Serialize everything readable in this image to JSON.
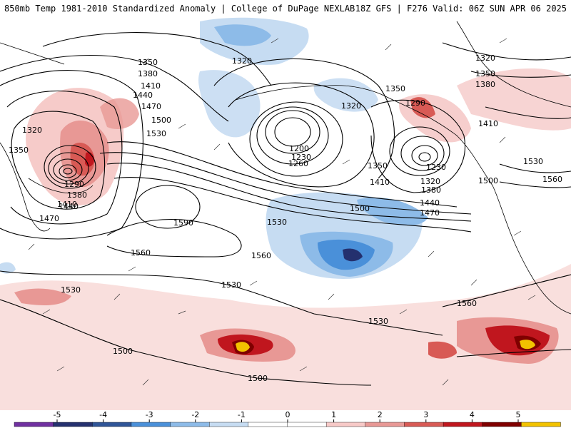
{
  "header": {
    "title_left": "850mb Temp 1981-2010 Standardized Anomaly | College of DuPage NEXLAB",
    "title_right": "18Z GFS | F276 Valid: 06Z SUN APR 06 2025"
  },
  "map": {
    "contour_labels": [
      "1350",
      "1380",
      "1410",
      "1440",
      "1470",
      "1500",
      "1530",
      "1320",
      "1350",
      "1290",
      "1380",
      "1410",
      "1440",
      "1470",
      "1590",
      "1560",
      "1530",
      "1500",
      "1500",
      "1320",
      "1320",
      "1200",
      "1230",
      "1260",
      "1290",
      "1350",
      "1350",
      "1230",
      "1320",
      "1380",
      "1410",
      "1440",
      "1470",
      "1500",
      "1530",
      "1560",
      "1530",
      "1320",
      "1350",
      "1380",
      "1410",
      "1500",
      "1530",
      "1560",
      "1560",
      "1530"
    ]
  },
  "legend": {
    "ticks": [
      "-5",
      "-4",
      "-3",
      "-2",
      "-1",
      "0",
      "1",
      "2",
      "3",
      "4",
      "5"
    ],
    "colors": [
      "#7030a0",
      "#24306e",
      "#2f5597",
      "#4a90d9",
      "#8dbbe8",
      "#c6dcf2",
      "#ffffff",
      "#ffffff",
      "#f7c9c7",
      "#e89895",
      "#d85a55",
      "#c0161e",
      "#7f0000",
      "#f2c200"
    ]
  }
}
